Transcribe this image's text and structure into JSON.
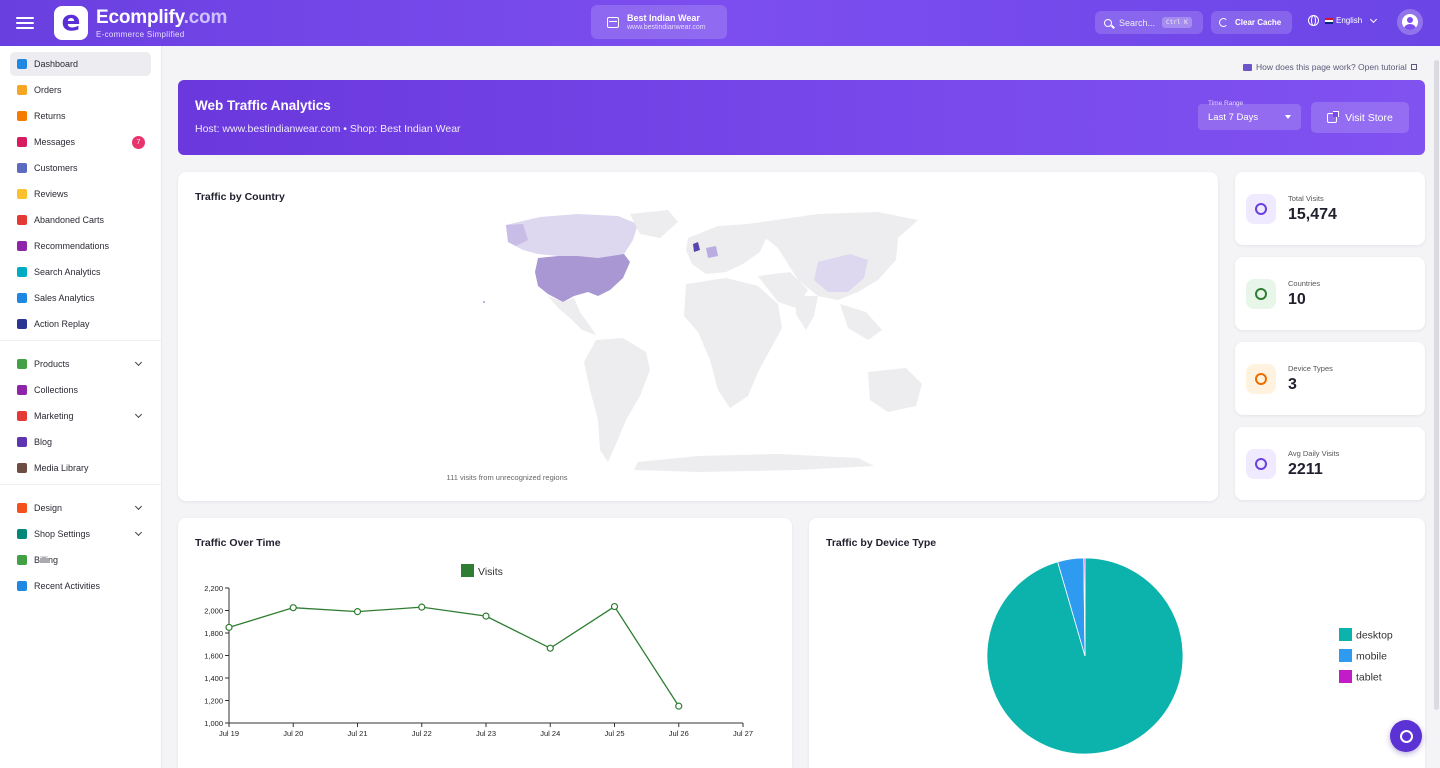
{
  "header": {
    "brand_name": "Ecomplify",
    "brand_domain": ".com",
    "brand_tagline": "E-commerce Simplified",
    "logo_letter": "e",
    "store_name": "Best Indian Wear",
    "store_url": "www.bestindianwear.com",
    "search_placeholder": "Search...",
    "search_shortcut": "Ctrl K",
    "clear_cache_label": "Clear Cache",
    "language_label": "English"
  },
  "sidebar": {
    "items": [
      {
        "label": "Dashboard",
        "icon": "dashboard-icon",
        "color": "#1e88e5"
      },
      {
        "label": "Orders",
        "icon": "cart-icon",
        "color": "#f5a623"
      },
      {
        "label": "Returns",
        "icon": "return-arrow-icon",
        "color": "#f57c00"
      },
      {
        "label": "Messages",
        "icon": "message-icon",
        "color": "#d81b60",
        "badge": "7"
      },
      {
        "label": "Customers",
        "icon": "people-icon",
        "color": "#5c6bc0"
      },
      {
        "label": "Reviews",
        "icon": "star-icon",
        "color": "#fbc02d"
      },
      {
        "label": "Abandoned Carts",
        "icon": "remove-cart-icon",
        "color": "#e53935"
      },
      {
        "label": "Recommendations",
        "icon": "pin-icon",
        "color": "#8e24aa"
      },
      {
        "label": "Search Analytics",
        "icon": "search-analytics-icon",
        "color": "#00acc1"
      },
      {
        "label": "Sales Analytics",
        "icon": "bar-chart-icon",
        "color": "#1e88e5"
      },
      {
        "label": "Action Replay",
        "icon": "clapper-icon",
        "color": "#283593"
      },
      {
        "label": "Products",
        "icon": "product-box-icon",
        "color": "#43a047",
        "chevron": true
      },
      {
        "label": "Collections",
        "icon": "collection-icon",
        "color": "#8e24aa"
      },
      {
        "label": "Marketing",
        "icon": "megaphone-icon",
        "color": "#e53935",
        "chevron": true
      },
      {
        "label": "Blog",
        "icon": "blog-icon",
        "color": "#5e35b1"
      },
      {
        "label": "Media Library",
        "icon": "media-icon",
        "color": "#6d4c41"
      },
      {
        "label": "Design",
        "icon": "palette-icon",
        "color": "#f4511e",
        "chevron": true
      },
      {
        "label": "Shop Settings",
        "icon": "shop-settings-icon",
        "color": "#00897b",
        "chevron": true
      },
      {
        "label": "Billing",
        "icon": "billing-icon",
        "color": "#43a047"
      },
      {
        "label": "Recent Activities",
        "icon": "history-icon",
        "color": "#1e88e5"
      }
    ]
  },
  "tutorial_link": "How does this page work? Open tutorial",
  "banner": {
    "title": "Web Traffic Analytics",
    "subtitle": "Host: www.bestindianwear.com  •  Shop: Best Indian Wear",
    "range_label": "Time Range",
    "range_value": "Last 7 Days",
    "visit_store_label": "Visit Store"
  },
  "map": {
    "title": "Traffic by Country",
    "note": "111 visits from unrecognized regions"
  },
  "stats": [
    {
      "label": "Total Visits",
      "value": "15,474",
      "icon": "trending-up-icon",
      "color": "#6a3fe0",
      "bg": "#efeaff"
    },
    {
      "label": "Countries",
      "value": "10",
      "icon": "globe-icon",
      "color": "#2e7d32",
      "bg": "#e8f5e9"
    },
    {
      "label": "Device Types",
      "value": "3",
      "icon": "devices-icon",
      "color": "#ef6c00",
      "bg": "#fff3e0"
    },
    {
      "label": "Avg Daily Visits",
      "value": "2211",
      "icon": "eye-icon",
      "color": "#6a3fe0",
      "bg": "#efeaff"
    }
  ],
  "chart_data": [
    {
      "type": "line",
      "title": "Traffic Over Time",
      "x": [
        "Jul 19",
        "Jul 20",
        "Jul 21",
        "Jul 22",
        "Jul 23",
        "Jul 24",
        "Jul 25",
        "Jul 26",
        "Jul 27"
      ],
      "series": [
        {
          "name": "Visits",
          "color": "#2e7d32",
          "points": [
            {
              "x": "Jul 19",
              "y": 1850
            },
            {
              "x": "Jul 20",
              "y": 2025
            },
            {
              "x": "Jul 21",
              "y": 1990
            },
            {
              "x": "Jul 22",
              "y": 2030
            },
            {
              "x": "Jul 23",
              "y": 1950
            },
            {
              "x": "Jul 24",
              "y": 1665
            },
            {
              "x": "Jul 25",
              "y": 2035
            },
            {
              "x": "Jul 26",
              "y": 1150
            }
          ]
        }
      ],
      "y_ticks": [
        "1,000",
        "1,200",
        "1,400",
        "1,600",
        "1,800",
        "2,000",
        "2,200"
      ],
      "ylim": [
        1000,
        2200
      ],
      "legend": "top-center"
    },
    {
      "type": "pie",
      "title": "Traffic by Device Type",
      "slices": [
        {
          "label": "desktop",
          "value": 95.5,
          "color": "#0bb3ac"
        },
        {
          "label": "mobile",
          "value": 4.3,
          "color": "#2e9bf0"
        },
        {
          "label": "tablet",
          "value": 0.2,
          "color": "#c21cc9"
        }
      ],
      "legend": "right"
    }
  ],
  "fab_icon": "support-headset-icon"
}
